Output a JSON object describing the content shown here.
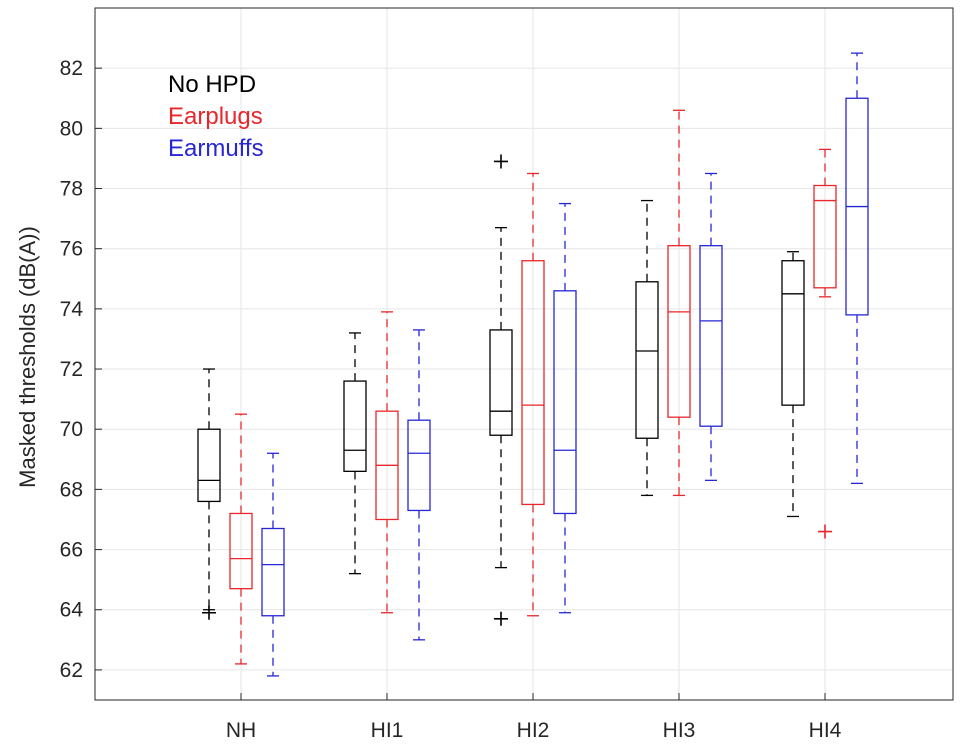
{
  "chart_data": {
    "type": "boxplot",
    "title": "",
    "xlabel": "",
    "ylabel": "Masked thresholds (dB(A))",
    "ylim": [
      61,
      84
    ],
    "yticks": [
      62,
      64,
      66,
      68,
      70,
      72,
      74,
      76,
      78,
      80,
      82
    ],
    "grid": true,
    "legend_position": "top-left",
    "categories": [
      "NH",
      "HI1",
      "HI2",
      "HI3",
      "HI4"
    ],
    "series": [
      {
        "name": "No HPD",
        "color": "#000000",
        "boxes": [
          {
            "whisker_low": 64.0,
            "q1": 67.6,
            "median": 68.3,
            "q3": 70.0,
            "whisker_high": 72.0,
            "outliers": [
              63.9
            ]
          },
          {
            "whisker_low": 65.2,
            "q1": 68.6,
            "median": 69.3,
            "q3": 71.6,
            "whisker_high": 73.2,
            "outliers": []
          },
          {
            "whisker_low": 65.4,
            "q1": 69.8,
            "median": 70.6,
            "q3": 73.3,
            "whisker_high": 76.7,
            "outliers": [
              78.9,
              63.7
            ]
          },
          {
            "whisker_low": 67.8,
            "q1": 69.7,
            "median": 72.6,
            "q3": 74.9,
            "whisker_high": 77.6,
            "outliers": []
          },
          {
            "whisker_low": 67.1,
            "q1": 70.8,
            "median": 74.5,
            "q3": 75.6,
            "whisker_high": 75.9,
            "outliers": []
          }
        ]
      },
      {
        "name": "Earplugs",
        "color": "#e8262b",
        "boxes": [
          {
            "whisker_low": 62.2,
            "q1": 64.7,
            "median": 65.7,
            "q3": 67.2,
            "whisker_high": 70.5,
            "outliers": []
          },
          {
            "whisker_low": 63.9,
            "q1": 67.0,
            "median": 68.8,
            "q3": 70.6,
            "whisker_high": 73.9,
            "outliers": []
          },
          {
            "whisker_low": 63.8,
            "q1": 67.5,
            "median": 70.8,
            "q3": 75.6,
            "whisker_high": 78.5,
            "outliers": []
          },
          {
            "whisker_low": 67.8,
            "q1": 70.4,
            "median": 73.9,
            "q3": 76.1,
            "whisker_high": 80.6,
            "outliers": []
          },
          {
            "whisker_low": 74.4,
            "q1": 74.7,
            "median": 77.6,
            "q3": 78.1,
            "whisker_high": 79.3,
            "outliers": [
              66.6
            ]
          }
        ]
      },
      {
        "name": "Earmuffs",
        "color": "#2626d6",
        "boxes": [
          {
            "whisker_low": 61.8,
            "q1": 63.8,
            "median": 65.5,
            "q3": 66.7,
            "whisker_high": 69.2,
            "outliers": []
          },
          {
            "whisker_low": 63.0,
            "q1": 67.3,
            "median": 69.2,
            "q3": 70.3,
            "whisker_high": 73.3,
            "outliers": []
          },
          {
            "whisker_low": 63.9,
            "q1": 67.2,
            "median": 69.3,
            "q3": 74.6,
            "whisker_high": 77.5,
            "outliers": []
          },
          {
            "whisker_low": 68.3,
            "q1": 70.1,
            "median": 73.6,
            "q3": 76.1,
            "whisker_high": 78.5,
            "outliers": []
          },
          {
            "whisker_low": 68.2,
            "q1": 73.8,
            "median": 77.4,
            "q3": 81.0,
            "whisker_high": 82.5,
            "outliers": []
          }
        ]
      }
    ]
  }
}
